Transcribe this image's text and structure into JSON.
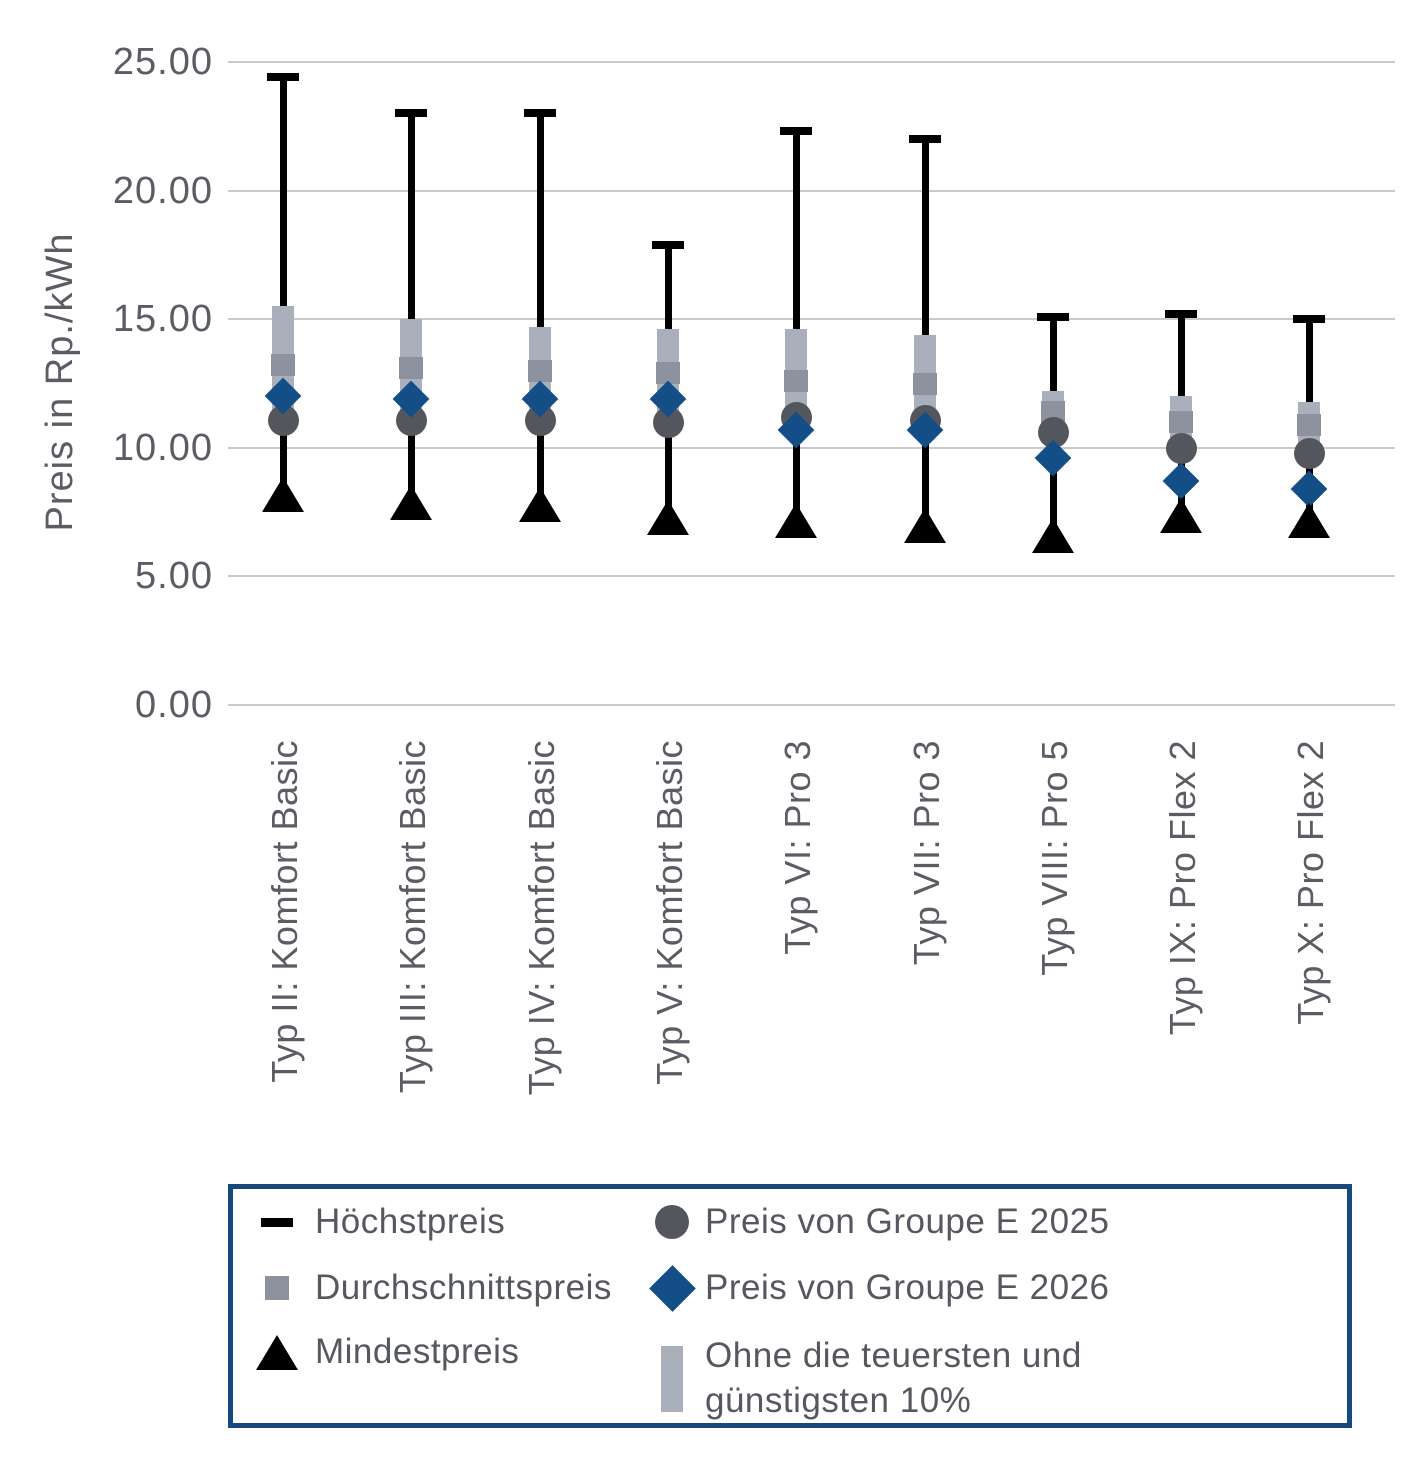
{
  "chart_data": {
    "type": "box-whisker-markers",
    "title": "",
    "ylabel": "Preis in Rp./kWh",
    "ylim": [
      0,
      25
    ],
    "grid": true,
    "legend_position": "bottom",
    "yticks": [
      {
        "value": 0,
        "label": "0.00"
      },
      {
        "value": 5,
        "label": "5.00"
      },
      {
        "value": 10,
        "label": "10.00"
      },
      {
        "value": 15,
        "label": "15.00"
      },
      {
        "value": 20,
        "label": "20.00"
      },
      {
        "value": 25,
        "label": "25.00"
      }
    ],
    "categories": [
      "Typ II: Komfort Basic",
      "Typ III: Komfort Basic",
      "Typ IV: Komfort Basic",
      "Typ V: Komfort Basic",
      "Typ VI: Pro 3",
      "Typ VII: Pro 3",
      "Typ VIII: Pro 5",
      "Typ IX: Pro Flex 2",
      "Typ X: Pro Flex 2"
    ],
    "series": [
      {
        "name": "Höchstpreis",
        "marker": "dash",
        "role": "max",
        "values": [
          24.4,
          23.0,
          23.0,
          17.9,
          22.3,
          22.0,
          15.1,
          15.2,
          15.0
        ]
      },
      {
        "name": "Ohne die teuersten und günstigsten 10%",
        "marker": "band",
        "role": "p10-p90-band",
        "values_top": [
          15.5,
          15.0,
          14.7,
          14.6,
          14.6,
          14.4,
          12.2,
          12.0,
          11.8
        ],
        "values_bottom": [
          10.8,
          10.8,
          10.8,
          10.7,
          10.9,
          10.8,
          10.2,
          9.6,
          9.4
        ]
      },
      {
        "name": "Durchschnittspreis",
        "marker": "square",
        "values": [
          13.2,
          13.1,
          13.0,
          12.9,
          12.6,
          12.5,
          11.4,
          11.0,
          10.9
        ]
      },
      {
        "name": "Preis von Groupe E 2025",
        "marker": "circle",
        "values": [
          11.1,
          11.1,
          11.1,
          11.0,
          11.2,
          11.1,
          10.6,
          10.0,
          9.8
        ]
      },
      {
        "name": "Preis von Groupe E 2026",
        "marker": "diamond",
        "values": [
          12.0,
          11.9,
          11.9,
          11.9,
          10.7,
          10.7,
          9.6,
          8.7,
          8.4
        ]
      },
      {
        "name": "Mindestpreis",
        "marker": "triangle",
        "role": "min",
        "values": [
          8.2,
          7.9,
          7.8,
          7.3,
          7.2,
          7.0,
          6.6,
          7.4,
          7.2
        ]
      }
    ]
  },
  "colors": {
    "max_whisker": "#000000",
    "percentile_band": "#A9B0BC",
    "avg_square": "#8D929E",
    "price_2025_circle": "#53565C",
    "price_2026_diamond": "#134E87",
    "min_triangle": "#000000",
    "gridline": "#C9CACB",
    "axis_text": "#5A5D64",
    "legend_text": "#55585F",
    "legend_border": "#16497E"
  },
  "legend": {
    "items": [
      {
        "icon": "dash-icon",
        "label": "Höchstpreis"
      },
      {
        "icon": "square-icon",
        "label": "Durchschnittspreis"
      },
      {
        "icon": "triangle-icon",
        "label": "Mindestpreis"
      },
      {
        "icon": "circle-icon",
        "label": "Preis von Groupe E 2025"
      },
      {
        "icon": "diamond-icon",
        "label": "Preis von Groupe E 2026"
      },
      {
        "icon": "band-icon",
        "label": "Ohne die teuersten und günstigsten 10%"
      }
    ]
  }
}
